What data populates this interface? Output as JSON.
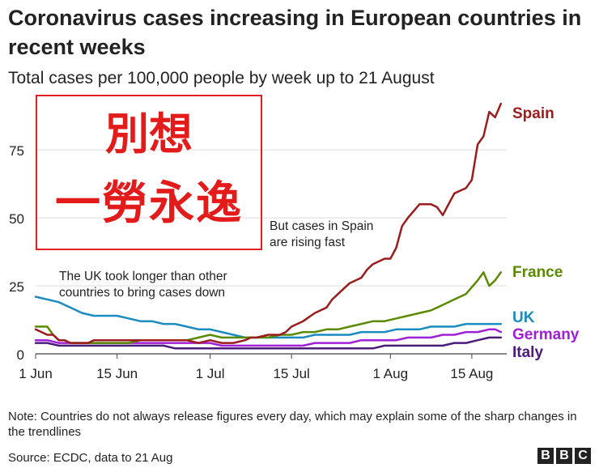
{
  "title": "Coronavirus cases increasing in European countries in recent weeks",
  "subtitle": "Total cases per 100,000 people by week up to 21 August",
  "note": "Note: Countries do not always release figures every day, which may explain some of the sharp changes in the trendlines",
  "source": "Source: ECDC, data to 21 Aug",
  "brand": [
    "B",
    "B",
    "C"
  ],
  "overlay": {
    "line1": "別想",
    "line2": "一勞永逸",
    "color": "#e31b1b"
  },
  "chart_data": {
    "type": "line",
    "title": "Coronavirus cases increasing in European countries in recent weeks",
    "xlabel": "",
    "ylabel": "Total cases per 100,000 people by week",
    "xlim": [
      0,
      81
    ],
    "ylim": [
      0,
      95
    ],
    "x_unit": "days since 1 Jun",
    "xticks": [
      {
        "day": 0,
        "label": "1 Jun"
      },
      {
        "day": 14,
        "label": "15 Jun"
      },
      {
        "day": 30,
        "label": "1 Jul"
      },
      {
        "day": 44,
        "label": "15 Jul"
      },
      {
        "day": 61,
        "label": "1 Aug"
      },
      {
        "day": 75,
        "label": "15 Aug"
      }
    ],
    "yticks": [
      0,
      25,
      50,
      75
    ],
    "annotations": [
      {
        "text": [
          "But cases in Spain",
          "are rising fast"
        ],
        "near": "Spain"
      },
      {
        "text": [
          "The UK took longer than other",
          "countries to bring cases down"
        ],
        "near": "UK"
      }
    ],
    "series": [
      {
        "name": "Spain",
        "color": "#9b1c1c",
        "points": [
          [
            0,
            9
          ],
          [
            1,
            8
          ],
          [
            2,
            7
          ],
          [
            3,
            7
          ],
          [
            4,
            5
          ],
          [
            5,
            5
          ],
          [
            6,
            4
          ],
          [
            7,
            4
          ],
          [
            8,
            4
          ],
          [
            9,
            4
          ],
          [
            10,
            5
          ],
          [
            12,
            5
          ],
          [
            14,
            5
          ],
          [
            16,
            5
          ],
          [
            18,
            5
          ],
          [
            20,
            5
          ],
          [
            22,
            5
          ],
          [
            24,
            5
          ],
          [
            26,
            5
          ],
          [
            28,
            4
          ],
          [
            30,
            5
          ],
          [
            32,
            4
          ],
          [
            34,
            4
          ],
          [
            36,
            5
          ],
          [
            37,
            6
          ],
          [
            38,
            6
          ],
          [
            40,
            7
          ],
          [
            42,
            7
          ],
          [
            43,
            8
          ],
          [
            44,
            10
          ],
          [
            46,
            12
          ],
          [
            48,
            15
          ],
          [
            50,
            17
          ],
          [
            51,
            20
          ],
          [
            52,
            22
          ],
          [
            54,
            26
          ],
          [
            56,
            28
          ],
          [
            57,
            31
          ],
          [
            58,
            33
          ],
          [
            60,
            35
          ],
          [
            61,
            35
          ],
          [
            62,
            39
          ],
          [
            63,
            47
          ],
          [
            64,
            50
          ],
          [
            66,
            55
          ],
          [
            68,
            55
          ],
          [
            69,
            54
          ],
          [
            70,
            51
          ],
          [
            71,
            55
          ],
          [
            72,
            59
          ],
          [
            73,
            60
          ],
          [
            74,
            61
          ],
          [
            75,
            64
          ],
          [
            76,
            77
          ],
          [
            77,
            80
          ],
          [
            78,
            89
          ],
          [
            79,
            87
          ],
          [
            80,
            92
          ]
        ]
      },
      {
        "name": "France",
        "color": "#5a8a00",
        "points": [
          [
            0,
            10
          ],
          [
            1,
            10
          ],
          [
            2,
            10
          ],
          [
            3,
            7
          ],
          [
            4,
            5
          ],
          [
            5,
            5
          ],
          [
            6,
            4
          ],
          [
            8,
            4
          ],
          [
            10,
            4
          ],
          [
            12,
            4
          ],
          [
            14,
            4
          ],
          [
            16,
            4
          ],
          [
            18,
            5
          ],
          [
            20,
            5
          ],
          [
            22,
            5
          ],
          [
            24,
            5
          ],
          [
            26,
            5
          ],
          [
            28,
            6
          ],
          [
            30,
            7
          ],
          [
            32,
            6
          ],
          [
            34,
            6
          ],
          [
            36,
            6
          ],
          [
            38,
            6
          ],
          [
            40,
            6
          ],
          [
            42,
            7
          ],
          [
            44,
            7
          ],
          [
            46,
            8
          ],
          [
            48,
            8
          ],
          [
            50,
            9
          ],
          [
            52,
            9
          ],
          [
            54,
            10
          ],
          [
            56,
            11
          ],
          [
            58,
            12
          ],
          [
            60,
            12
          ],
          [
            62,
            13
          ],
          [
            64,
            14
          ],
          [
            66,
            15
          ],
          [
            68,
            16
          ],
          [
            70,
            18
          ],
          [
            72,
            20
          ],
          [
            74,
            22
          ],
          [
            76,
            27
          ],
          [
            77,
            30
          ],
          [
            78,
            25
          ],
          [
            79,
            27
          ],
          [
            80,
            30
          ]
        ]
      },
      {
        "name": "UK",
        "color": "#1a8cbf",
        "points": [
          [
            0,
            21
          ],
          [
            2,
            20
          ],
          [
            4,
            19
          ],
          [
            6,
            17
          ],
          [
            8,
            15
          ],
          [
            10,
            14
          ],
          [
            12,
            14
          ],
          [
            14,
            14
          ],
          [
            16,
            13
          ],
          [
            18,
            12
          ],
          [
            20,
            12
          ],
          [
            22,
            11
          ],
          [
            24,
            11
          ],
          [
            26,
            10
          ],
          [
            28,
            9
          ],
          [
            30,
            9
          ],
          [
            32,
            8
          ],
          [
            34,
            7
          ],
          [
            36,
            6
          ],
          [
            38,
            6
          ],
          [
            40,
            6
          ],
          [
            42,
            6
          ],
          [
            44,
            6
          ],
          [
            46,
            6
          ],
          [
            48,
            7
          ],
          [
            50,
            7
          ],
          [
            52,
            7
          ],
          [
            54,
            7
          ],
          [
            56,
            8
          ],
          [
            58,
            8
          ],
          [
            60,
            8
          ],
          [
            62,
            9
          ],
          [
            64,
            9
          ],
          [
            66,
            9
          ],
          [
            68,
            10
          ],
          [
            70,
            10
          ],
          [
            72,
            10
          ],
          [
            74,
            11
          ],
          [
            76,
            11
          ],
          [
            78,
            11
          ],
          [
            80,
            11
          ]
        ]
      },
      {
        "name": "Germany",
        "color": "#a020d8",
        "points": [
          [
            0,
            5
          ],
          [
            2,
            5
          ],
          [
            4,
            4
          ],
          [
            6,
            4
          ],
          [
            8,
            4
          ],
          [
            10,
            4
          ],
          [
            12,
            4
          ],
          [
            14,
            4
          ],
          [
            16,
            4
          ],
          [
            18,
            4
          ],
          [
            20,
            4
          ],
          [
            22,
            4
          ],
          [
            24,
            4
          ],
          [
            26,
            4
          ],
          [
            28,
            4
          ],
          [
            30,
            4
          ],
          [
            32,
            3
          ],
          [
            34,
            3
          ],
          [
            36,
            3
          ],
          [
            38,
            3
          ],
          [
            40,
            3
          ],
          [
            42,
            3
          ],
          [
            44,
            3
          ],
          [
            46,
            3
          ],
          [
            48,
            4
          ],
          [
            50,
            4
          ],
          [
            52,
            4
          ],
          [
            54,
            4
          ],
          [
            56,
            5
          ],
          [
            58,
            5
          ],
          [
            60,
            5
          ],
          [
            62,
            5
          ],
          [
            64,
            6
          ],
          [
            66,
            6
          ],
          [
            68,
            6
          ],
          [
            70,
            7
          ],
          [
            72,
            7
          ],
          [
            74,
            8
          ],
          [
            76,
            8
          ],
          [
            78,
            9
          ],
          [
            79,
            9
          ],
          [
            80,
            8
          ]
        ]
      },
      {
        "name": "Italy",
        "color": "#4b1d7a",
        "points": [
          [
            0,
            4
          ],
          [
            2,
            4
          ],
          [
            4,
            3
          ],
          [
            6,
            3
          ],
          [
            8,
            3
          ],
          [
            10,
            3
          ],
          [
            12,
            3
          ],
          [
            14,
            3
          ],
          [
            16,
            3
          ],
          [
            18,
            3
          ],
          [
            20,
            3
          ],
          [
            22,
            3
          ],
          [
            24,
            2
          ],
          [
            26,
            2
          ],
          [
            28,
            2
          ],
          [
            30,
            2
          ],
          [
            32,
            2
          ],
          [
            34,
            2
          ],
          [
            36,
            2
          ],
          [
            38,
            2
          ],
          [
            40,
            2
          ],
          [
            42,
            2
          ],
          [
            44,
            2
          ],
          [
            46,
            2
          ],
          [
            48,
            2
          ],
          [
            50,
            2
          ],
          [
            52,
            2
          ],
          [
            54,
            2
          ],
          [
            56,
            2
          ],
          [
            58,
            2
          ],
          [
            60,
            3
          ],
          [
            62,
            3
          ],
          [
            64,
            3
          ],
          [
            66,
            3
          ],
          [
            68,
            3
          ],
          [
            70,
            3
          ],
          [
            72,
            4
          ],
          [
            74,
            4
          ],
          [
            76,
            5
          ],
          [
            78,
            6
          ],
          [
            80,
            6
          ]
        ]
      }
    ]
  }
}
